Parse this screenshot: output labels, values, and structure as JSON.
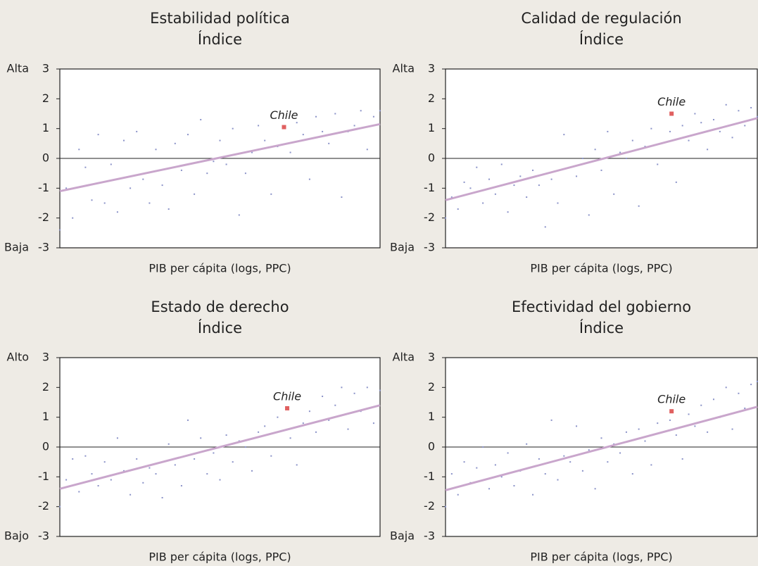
{
  "chart_data": [
    {
      "type": "scatter",
      "title": "Estabilidad política",
      "subtitle": "Índice",
      "xlabel": "PIB per cápita (logs, PPC)",
      "y_top_label": "Alta",
      "y_bottom_label": "Baja",
      "xlim": [
        0,
        100
      ],
      "ylim": [
        -3,
        3
      ],
      "yticks": [
        3,
        2,
        1,
        0,
        -1,
        -2,
        -3
      ],
      "series": [
        {
          "color": "#8a92c8",
          "x": [
            0,
            2,
            4,
            6,
            8,
            10,
            12,
            14,
            16,
            18,
            20,
            22,
            24,
            26,
            28,
            30,
            32,
            34,
            36,
            38,
            40,
            42,
            44,
            46,
            48,
            50,
            52,
            54,
            56,
            58,
            60,
            62,
            64,
            66,
            68,
            72,
            74,
            76,
            78,
            80,
            82,
            84,
            86,
            88,
            90,
            92,
            94,
            96,
            98,
            100
          ],
          "y": [
            -2.4,
            -1.0,
            -2.0,
            0.3,
            -0.3,
            -1.4,
            0.8,
            -1.5,
            -0.2,
            -1.8,
            0.6,
            -1.0,
            0.9,
            -0.7,
            -1.5,
            0.3,
            -0.9,
            -1.7,
            0.5,
            -0.4,
            0.8,
            -1.2,
            1.3,
            -0.5,
            -0.1,
            0.6,
            -0.2,
            1.0,
            -1.9,
            -0.5,
            0.2,
            1.1,
            0.6,
            -1.2,
            0.4,
            0.2,
            1.2,
            0.8,
            -0.7,
            1.4,
            0.9,
            0.5,
            1.5,
            -1.3,
            0.9,
            1.1,
            1.6,
            0.3,
            1.4,
            1.6
          ]
        }
      ],
      "trend": {
        "color": "#c9a6cc",
        "x": [
          0,
          100
        ],
        "y": [
          -1.1,
          1.15
        ]
      },
      "annotation": {
        "text": "Chile",
        "x": 70,
        "y": 1.05,
        "color": "#e06060"
      }
    },
    {
      "type": "scatter",
      "title": "Calidad de regulación",
      "subtitle": "Índice",
      "xlabel": "PIB per cápita (logs, PPC)",
      "y_top_label": "Alta",
      "y_bottom_label": "Baja",
      "xlim": [
        0,
        100
      ],
      "ylim": [
        -3,
        3
      ],
      "yticks": [
        3,
        2,
        1,
        0,
        -1,
        -2,
        -3
      ],
      "series": [
        {
          "color": "#8a92c8",
          "x": [
            0,
            2,
            4,
            6,
            8,
            10,
            12,
            14,
            16,
            18,
            20,
            22,
            24,
            26,
            28,
            30,
            32,
            34,
            36,
            38,
            40,
            42,
            44,
            46,
            48,
            50,
            52,
            54,
            56,
            58,
            60,
            62,
            64,
            66,
            68,
            72,
            74,
            76,
            78,
            80,
            82,
            84,
            86,
            88,
            90,
            92,
            94,
            96,
            98,
            100
          ],
          "y": [
            -2.0,
            -1.3,
            -1.7,
            -0.8,
            -1.0,
            -0.3,
            -1.5,
            -0.7,
            -1.2,
            -0.2,
            -1.8,
            -0.9,
            -0.6,
            -1.3,
            -0.4,
            -0.9,
            -2.3,
            -0.7,
            -1.5,
            0.8,
            -0.3,
            -0.6,
            0.0,
            -1.9,
            0.3,
            -0.4,
            0.9,
            -1.2,
            0.2,
            0.0,
            0.6,
            -1.6,
            0.4,
            1.0,
            -0.2,
            0.9,
            -0.8,
            1.1,
            0.6,
            1.5,
            1.2,
            0.3,
            1.3,
            0.9,
            1.8,
            0.7,
            1.6,
            1.1,
            1.7,
            1.4
          ]
        }
      ],
      "trend": {
        "color": "#c9a6cc",
        "x": [
          0,
          100
        ],
        "y": [
          -1.4,
          1.35
        ]
      },
      "annotation": {
        "text": "Chile",
        "x": 72.5,
        "y": 1.5,
        "color": "#e06060"
      }
    },
    {
      "type": "scatter",
      "title": "Estado de derecho",
      "subtitle": "Índice",
      "xlabel": "PIB per cápita (logs, PPC)",
      "y_top_label": "Alto",
      "y_bottom_label": "Bajo",
      "xlim": [
        0,
        100
      ],
      "ylim": [
        -3,
        3
      ],
      "yticks": [
        3,
        2,
        1,
        0,
        -1,
        -2,
        -3
      ],
      "series": [
        {
          "color": "#8a92c8",
          "x": [
            0,
            2,
            4,
            6,
            8,
            10,
            12,
            14,
            16,
            18,
            20,
            22,
            24,
            26,
            28,
            30,
            32,
            34,
            36,
            38,
            40,
            42,
            44,
            46,
            48,
            50,
            52,
            54,
            56,
            58,
            60,
            62,
            64,
            66,
            68,
            72,
            74,
            76,
            78,
            80,
            82,
            84,
            86,
            88,
            90,
            92,
            94,
            96,
            98,
            100
          ],
          "y": [
            -2.0,
            -1.1,
            -0.4,
            -1.5,
            -0.3,
            -0.9,
            -1.3,
            -0.5,
            -1.1,
            0.3,
            -0.8,
            -1.6,
            -0.4,
            -1.2,
            -0.7,
            -0.9,
            -1.7,
            0.1,
            -0.6,
            -1.3,
            0.9,
            -0.4,
            0.3,
            -0.9,
            -0.2,
            -1.1,
            0.4,
            -0.5,
            0.2,
            0.0,
            -0.8,
            0.5,
            0.7,
            -0.3,
            1.0,
            0.3,
            -0.6,
            0.8,
            1.2,
            0.5,
            1.7,
            0.9,
            1.4,
            2.0,
            0.6,
            1.8,
            1.2,
            2.0,
            0.8,
            1.9
          ]
        }
      ],
      "trend": {
        "color": "#c9a6cc",
        "x": [
          0,
          100
        ],
        "y": [
          -1.4,
          1.4
        ]
      },
      "annotation": {
        "text": "Chile",
        "x": 71,
        "y": 1.3,
        "color": "#e06060"
      }
    },
    {
      "type": "scatter",
      "title": "Efectividad del gobierno",
      "subtitle": "Índice",
      "xlabel": "PIB per cápita (logs, PPC)",
      "y_top_label": "Alta",
      "y_bottom_label": "Baja",
      "xlim": [
        0,
        100
      ],
      "ylim": [
        -3,
        3
      ],
      "yticks": [
        3,
        2,
        1,
        0,
        -1,
        -2,
        -3
      ],
      "series": [
        {
          "color": "#8a92c8",
          "x": [
            0,
            2,
            4,
            6,
            8,
            10,
            12,
            14,
            16,
            18,
            20,
            22,
            24,
            26,
            28,
            30,
            32,
            34,
            36,
            38,
            40,
            42,
            44,
            46,
            48,
            50,
            52,
            54,
            56,
            58,
            60,
            62,
            64,
            66,
            68,
            72,
            74,
            76,
            78,
            80,
            82,
            84,
            86,
            88,
            90,
            92,
            94,
            96,
            98,
            100
          ],
          "y": [
            -2.0,
            -0.9,
            -1.6,
            -0.5,
            -1.2,
            -0.7,
            0.0,
            -1.4,
            -0.6,
            -1.0,
            -0.2,
            -1.3,
            -0.8,
            0.1,
            -1.6,
            -0.4,
            -0.9,
            0.9,
            -1.1,
            -0.3,
            -0.5,
            0.7,
            -0.8,
            -0.1,
            -1.4,
            0.3,
            -0.5,
            0.1,
            -0.2,
            0.5,
            -0.9,
            0.6,
            0.2,
            -0.6,
            0.8,
            0.9,
            0.4,
            -0.4,
            1.1,
            0.7,
            1.4,
            0.5,
            1.6,
            1.0,
            2.0,
            0.6,
            1.8,
            1.3,
            2.1,
            2.2
          ]
        }
      ],
      "trend": {
        "color": "#c9a6cc",
        "x": [
          0,
          100
        ],
        "y": [
          -1.45,
          1.35
        ]
      },
      "annotation": {
        "text": "Chile",
        "x": 72.5,
        "y": 1.2,
        "color": "#e06060"
      }
    }
  ]
}
